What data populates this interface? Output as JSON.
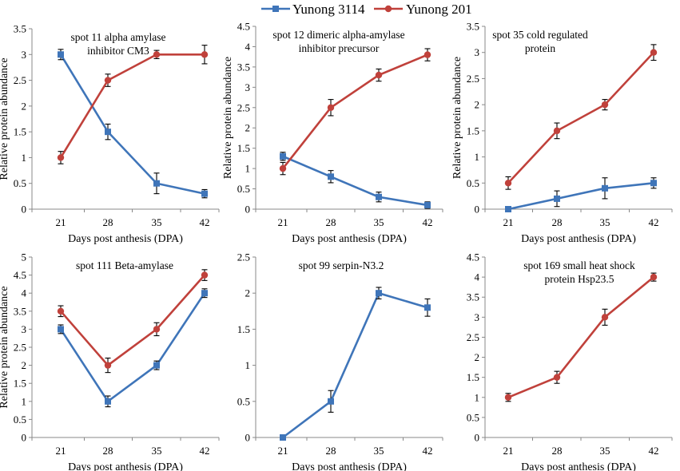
{
  "legend": {
    "series": [
      {
        "name": "Yunong 3114",
        "color": "#3f75b9",
        "marker": "square"
      },
      {
        "name": "Yunong 201",
        "color": "#c0413b",
        "marker": "circle"
      }
    ]
  },
  "chart_data": [
    {
      "type": "line",
      "title_lines": [
        "spot 11 alpha amylase",
        "inhibitor CM3"
      ],
      "xlabel": "Days post anthesis (DPA)",
      "ylabel": "Relative protein  abundance",
      "categories": [
        "21",
        "28",
        "35",
        "42"
      ],
      "ylim": [
        0,
        3.5
      ],
      "yticks": [
        "0",
        "0.5",
        "1",
        "1.5",
        "2",
        "2.5",
        "3",
        "3.5"
      ],
      "series": [
        {
          "name": "Yunong 3114",
          "values": [
            3.0,
            1.5,
            0.5,
            0.3
          ],
          "errors": [
            0.1,
            0.15,
            0.2,
            0.08
          ]
        },
        {
          "name": "Yunong 201",
          "values": [
            1.0,
            2.5,
            3.0,
            3.0
          ],
          "errors": [
            0.12,
            0.12,
            0.08,
            0.18
          ]
        }
      ]
    },
    {
      "type": "line",
      "title_lines": [
        "spot 12 dimeric alpha-amylase",
        "inhibitor precursor"
      ],
      "xlabel": "Days post anthesis (DPA)",
      "ylabel": "Relative protein  abundance",
      "categories": [
        "21",
        "28",
        "35",
        "42"
      ],
      "ylim": [
        0,
        4.5
      ],
      "yticks": [
        "0",
        "0.5",
        "1",
        "1.5",
        "2",
        "2.5",
        "3",
        "3.5",
        "4",
        "4.5"
      ],
      "series": [
        {
          "name": "Yunong 3114",
          "values": [
            1.3,
            0.8,
            0.3,
            0.1
          ],
          "errors": [
            0.1,
            0.15,
            0.12,
            0.08
          ]
        },
        {
          "name": "Yunong 201",
          "values": [
            1.0,
            2.5,
            3.3,
            3.8
          ],
          "errors": [
            0.15,
            0.2,
            0.15,
            0.15
          ]
        }
      ]
    },
    {
      "type": "line",
      "title_lines": [
        "spot 35 cold regulated",
        "protein"
      ],
      "xlabel": "Days post anthesis (DPA)",
      "ylabel": "Relative protein  abundance",
      "categories": [
        "21",
        "28",
        "35",
        "42"
      ],
      "ylim": [
        0,
        3.5
      ],
      "yticks": [
        "0",
        "0.5",
        "1",
        "1.5",
        "2",
        "2.5",
        "3",
        "3.5"
      ],
      "series": [
        {
          "name": "Yunong 3114",
          "values": [
            0.0,
            0.2,
            0.4,
            0.5
          ],
          "errors": [
            0.0,
            0.15,
            0.2,
            0.1
          ]
        },
        {
          "name": "Yunong 201",
          "values": [
            0.5,
            1.5,
            2.0,
            3.0
          ],
          "errors": [
            0.12,
            0.15,
            0.1,
            0.15
          ]
        }
      ]
    },
    {
      "type": "line",
      "title_lines": [
        "spot 111 Beta-amylase"
      ],
      "xlabel": "Days post anthesis (DPA)",
      "ylabel": "Relative protein  abundance",
      "categories": [
        "21",
        "28",
        "35",
        "42"
      ],
      "ylim": [
        0,
        5
      ],
      "yticks": [
        "0",
        "0.5",
        "1",
        "1.5",
        "2",
        "2.5",
        "3",
        "3.5",
        "4",
        "4.5",
        "5"
      ],
      "series": [
        {
          "name": "Yunong 3114",
          "values": [
            3.0,
            1.0,
            2.0,
            4.0
          ],
          "errors": [
            0.12,
            0.15,
            0.12,
            0.12
          ]
        },
        {
          "name": "Yunong 201",
          "values": [
            3.5,
            2.0,
            3.0,
            4.5
          ],
          "errors": [
            0.15,
            0.2,
            0.18,
            0.15
          ]
        }
      ]
    },
    {
      "type": "line",
      "title_lines": [
        "spot 99 serpin-N3.2"
      ],
      "xlabel": "Days post anthesis (DPA)",
      "ylabel": "",
      "categories": [
        "21",
        "28",
        "35",
        "42"
      ],
      "ylim": [
        0,
        2.5
      ],
      "yticks": [
        "0",
        "0.5",
        "1",
        "1.5",
        "2",
        "2.5"
      ],
      "series": [
        {
          "name": "Yunong 3114",
          "values": [
            0.0,
            0.5,
            2.0,
            1.8
          ],
          "errors": [
            0.0,
            0.15,
            0.08,
            0.12
          ]
        }
      ]
    },
    {
      "type": "line",
      "title_lines": [
        "spot 169 small heat shock",
        "protein Hsp23.5"
      ],
      "xlabel": "Days post anthesis (DPA)",
      "ylabel": "",
      "categories": [
        "21",
        "28",
        "35",
        "42"
      ],
      "ylim": [
        0,
        4.5
      ],
      "yticks": [
        "0",
        "0.5",
        "1",
        "1.5",
        "2",
        "2.5",
        "3",
        "3.5",
        "4",
        "4.5"
      ],
      "series": [
        {
          "name": "Yunong 201",
          "values": [
            1.0,
            1.5,
            3.0,
            4.0
          ],
          "errors": [
            0.1,
            0.15,
            0.2,
            0.1
          ]
        }
      ]
    }
  ]
}
